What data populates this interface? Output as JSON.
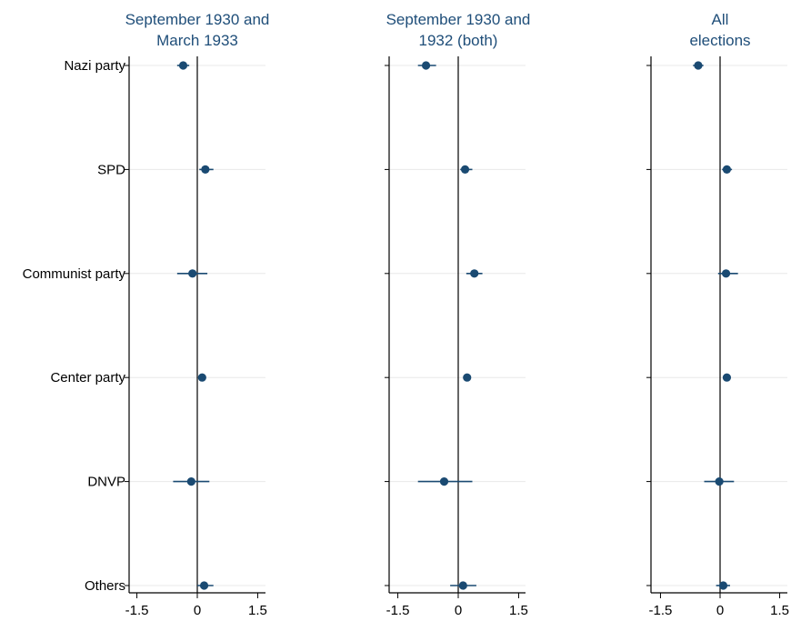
{
  "chart_data": {
    "type": "scatter",
    "subtype": "coefficient-plot",
    "rows": [
      "Nazi party",
      "SPD",
      "Communist party",
      "Center party",
      "DNVP",
      "Others"
    ],
    "xlim": [
      -1.7,
      1.7
    ],
    "xticks": [
      -1.5,
      0,
      1.5
    ],
    "xtick_labels": [
      "-1.5",
      "0",
      "1.5"
    ],
    "reference_line": 0,
    "grid": "horizontal light lines at each row",
    "colors": {
      "point": "#1a4a72",
      "title": "#1f4e79",
      "axis": "#000000",
      "grid": "#e8e8e8"
    },
    "panels": [
      {
        "title_lines": [
          "September 1930 and",
          "March 1933"
        ],
        "estimates": [
          {
            "row": "Nazi party",
            "value": -0.35,
            "ci": [
              -0.5,
              -0.2
            ]
          },
          {
            "row": "SPD",
            "value": 0.2,
            "ci": [
              0.05,
              0.4
            ]
          },
          {
            "row": "Communist party",
            "value": -0.12,
            "ci": [
              -0.5,
              0.25
            ]
          },
          {
            "row": "Center party",
            "value": 0.12,
            "ci": [
              0.05,
              0.2
            ]
          },
          {
            "row": "DNVP",
            "value": -0.15,
            "ci": [
              -0.6,
              0.3
            ]
          },
          {
            "row": "Others",
            "value": 0.17,
            "ci": [
              0.0,
              0.4
            ]
          }
        ]
      },
      {
        "title_lines": [
          "September 1930 and",
          "1932 (both)"
        ],
        "estimates": [
          {
            "row": "Nazi party",
            "value": -0.8,
            "ci": [
              -1.0,
              -0.55
            ]
          },
          {
            "row": "SPD",
            "value": 0.17,
            "ci": [
              0.05,
              0.35
            ]
          },
          {
            "row": "Communist party",
            "value": 0.4,
            "ci": [
              0.2,
              0.6
            ]
          },
          {
            "row": "Center party",
            "value": 0.22,
            "ci": [
              0.15,
              0.3
            ]
          },
          {
            "row": "DNVP",
            "value": -0.35,
            "ci": [
              -1.0,
              0.35
            ]
          },
          {
            "row": "Others",
            "value": 0.12,
            "ci": [
              -0.2,
              0.45
            ]
          }
        ]
      },
      {
        "title_lines": [
          "All",
          "elections"
        ],
        "estimates": [
          {
            "row": "Nazi party",
            "value": -0.55,
            "ci": [
              -0.68,
              -0.42
            ]
          },
          {
            "row": "SPD",
            "value": 0.17,
            "ci": [
              0.05,
              0.3
            ]
          },
          {
            "row": "Communist party",
            "value": 0.15,
            "ci": [
              -0.05,
              0.45
            ]
          },
          {
            "row": "Center party",
            "value": 0.17,
            "ci": [
              0.1,
              0.24
            ]
          },
          {
            "row": "DNVP",
            "value": -0.02,
            "ci": [
              -0.4,
              0.35
            ]
          },
          {
            "row": "Others",
            "value": 0.08,
            "ci": [
              -0.1,
              0.25
            ]
          }
        ]
      }
    ]
  }
}
